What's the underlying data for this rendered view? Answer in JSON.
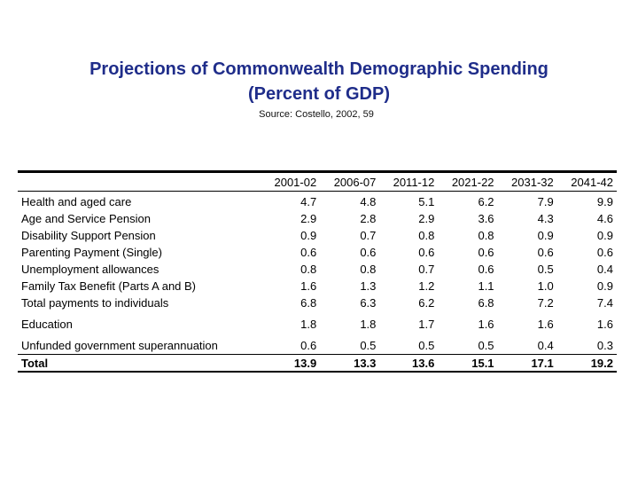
{
  "title_line1": "Projections of Commonwealth Demographic Spending",
  "title_line2": "(Percent of GDP)",
  "source": "Source:   Costello, 2002, 59",
  "table": {
    "columns": [
      "2001-02",
      "2006-07",
      "2011-12",
      "2021-22",
      "2031-32",
      "2041-42"
    ],
    "rows": [
      {
        "label": "Health and aged care",
        "values": [
          "4.7",
          "4.8",
          "5.1",
          "6.2",
          "7.9",
          "9.9"
        ]
      },
      {
        "label": "Age and Service Pension",
        "values": [
          "2.9",
          "2.8",
          "2.9",
          "3.6",
          "4.3",
          "4.6"
        ]
      },
      {
        "label": "Disability Support Pension",
        "values": [
          "0.9",
          "0.7",
          "0.8",
          "0.8",
          "0.9",
          "0.9"
        ]
      },
      {
        "label": "Parenting Payment (Single)",
        "values": [
          "0.6",
          "0.6",
          "0.6",
          "0.6",
          "0.6",
          "0.6"
        ]
      },
      {
        "label": "Unemployment allowances",
        "values": [
          "0.8",
          "0.8",
          "0.7",
          "0.6",
          "0.5",
          "0.4"
        ]
      },
      {
        "label": "Family Tax Benefit (Parts A and B)",
        "values": [
          "1.6",
          "1.3",
          "1.2",
          "1.1",
          "1.0",
          "0.9"
        ]
      },
      {
        "label": "Total payments to individuals",
        "values": [
          "6.8",
          "6.3",
          "6.2",
          "6.8",
          "7.2",
          "7.4"
        ]
      },
      {
        "label": "Education",
        "values": [
          "1.8",
          "1.8",
          "1.7",
          "1.6",
          "1.6",
          "1.6"
        ]
      },
      {
        "label": "Unfunded government superannuation",
        "values": [
          "0.6",
          "0.5",
          "0.5",
          "0.5",
          "0.4",
          "0.3"
        ]
      }
    ],
    "total": {
      "label": "Total",
      "values": [
        "13.9",
        "13.3",
        "13.6",
        "15.1",
        "17.1",
        "19.2"
      ]
    }
  }
}
